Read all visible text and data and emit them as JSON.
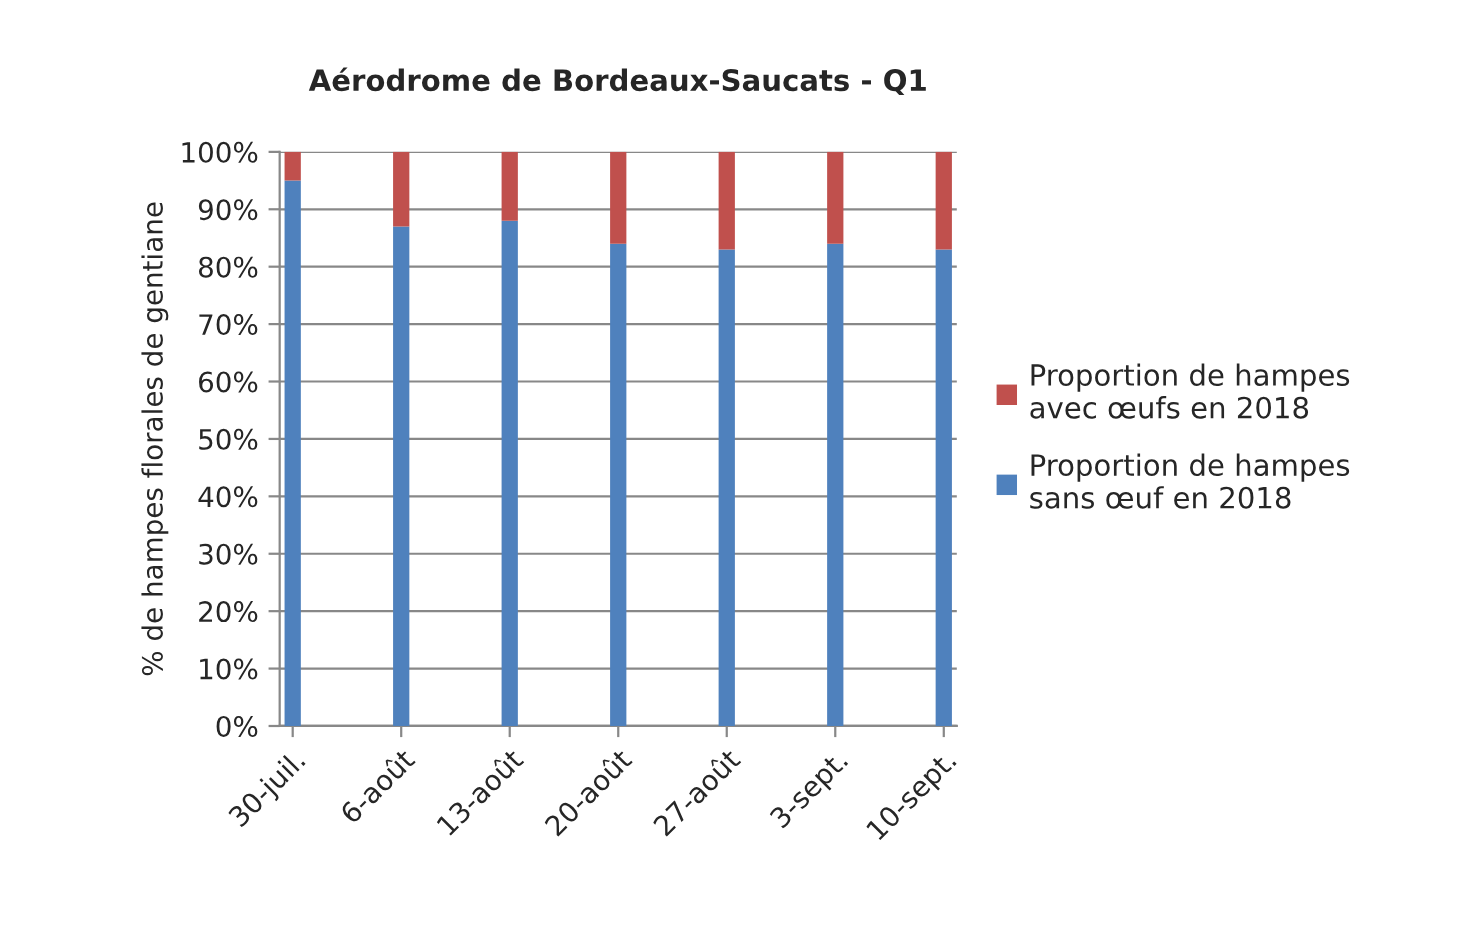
{
  "chart_data": {
    "type": "bar",
    "stacked": true,
    "title": "Aérodrome de Bordeaux-Saucats - Q1",
    "ylabel": "% de hampes florales de gentiane",
    "categories": [
      "30-juil.",
      "6-août",
      "13-août",
      "20-août",
      "27-août",
      "3-sept.",
      "10-sept."
    ],
    "series": [
      {
        "name": "Proportion de hampes sans œuf en 2018",
        "color": "#4f81bd",
        "values": [
          95,
          87,
          88,
          84,
          83,
          84,
          83
        ]
      },
      {
        "name": "Proportion de hampes avec œufs en 2018",
        "color": "#c0504d",
        "values": [
          5,
          13,
          12,
          16,
          17,
          16,
          17
        ]
      }
    ],
    "ylim": [
      0,
      100
    ],
    "yticks": [
      {
        "value": 0,
        "label": "0%"
      },
      {
        "value": 10,
        "label": "10%"
      },
      {
        "value": 20,
        "label": "20%"
      },
      {
        "value": 30,
        "label": "30%"
      },
      {
        "value": 40,
        "label": "40%"
      },
      {
        "value": 50,
        "label": "50%"
      },
      {
        "value": 60,
        "label": "60%"
      },
      {
        "value": 70,
        "label": "70%"
      },
      {
        "value": 80,
        "label": "80%"
      },
      {
        "value": 90,
        "label": "90%"
      },
      {
        "value": 100,
        "label": "100%"
      }
    ],
    "grid": "y",
    "legend": "right"
  }
}
